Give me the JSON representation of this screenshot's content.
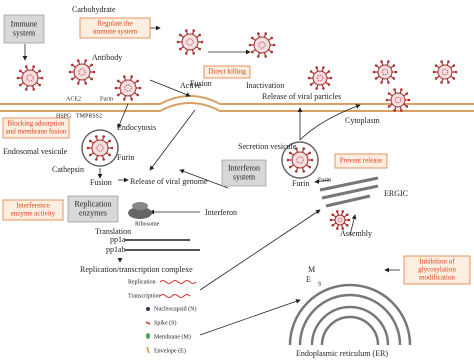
{
  "labels": {
    "carbohydrate": "Carbohydrate",
    "antibody": "Antibody",
    "active": "Active",
    "inactivation": "Inactivation",
    "fusion_top": "Fusion",
    "release_particles": "Release of viral particles",
    "cytoplasm": "Cytoplasm",
    "ace2": "ACE2",
    "furin_membrane": "Furin",
    "hspg": "HSPG",
    "tmprss2": "TMPRSS2",
    "endocytosis": "Endocytosis",
    "endosomal": "Endosomal vesicule",
    "furin_endosome": "Furin",
    "cathepsin": "Cathepsin",
    "secretion": "Secretion vesicule",
    "furin_secretion": "Furin",
    "fusion_bottom": "Fusion",
    "release_genome": "Release of viral genome",
    "interferon": "Interferon",
    "ribosome": "Ribosome",
    "translation": "Translation",
    "pp1a": "pp1a",
    "pp1ab": "pp1ab",
    "rtc": "Replication/transcription complexe",
    "replication": "Replication",
    "transcription": "Transcription",
    "furin_ergic": "Furin",
    "ergic": "ERGIC",
    "assembly": "Assembly",
    "m": "M",
    "e": "E",
    "s": "S",
    "er": "Endoplasmic reticulum (ER)"
  },
  "systems": {
    "immune": [
      "Immune",
      "system"
    ],
    "interferon": [
      "Interferon",
      "system"
    ],
    "replication_enzymes": [
      "Replication",
      "enzymes"
    ]
  },
  "interventions": {
    "regulate": [
      "Regulate the",
      "immune system"
    ],
    "direct_killing": [
      "Direct killing"
    ],
    "blocking": [
      "Blocking adsorption",
      "and membrane fusion"
    ],
    "prevent_release": [
      "Prevent release"
    ],
    "interference": [
      "Interference",
      "enzyme activity"
    ],
    "glycosylation": [
      "Inhibition of",
      "glycosylation",
      "modification"
    ]
  },
  "legend": [
    "Nucleocapsid (N)",
    "Spike (S)",
    "Membrane (M)",
    "Envelope (E)"
  ]
}
